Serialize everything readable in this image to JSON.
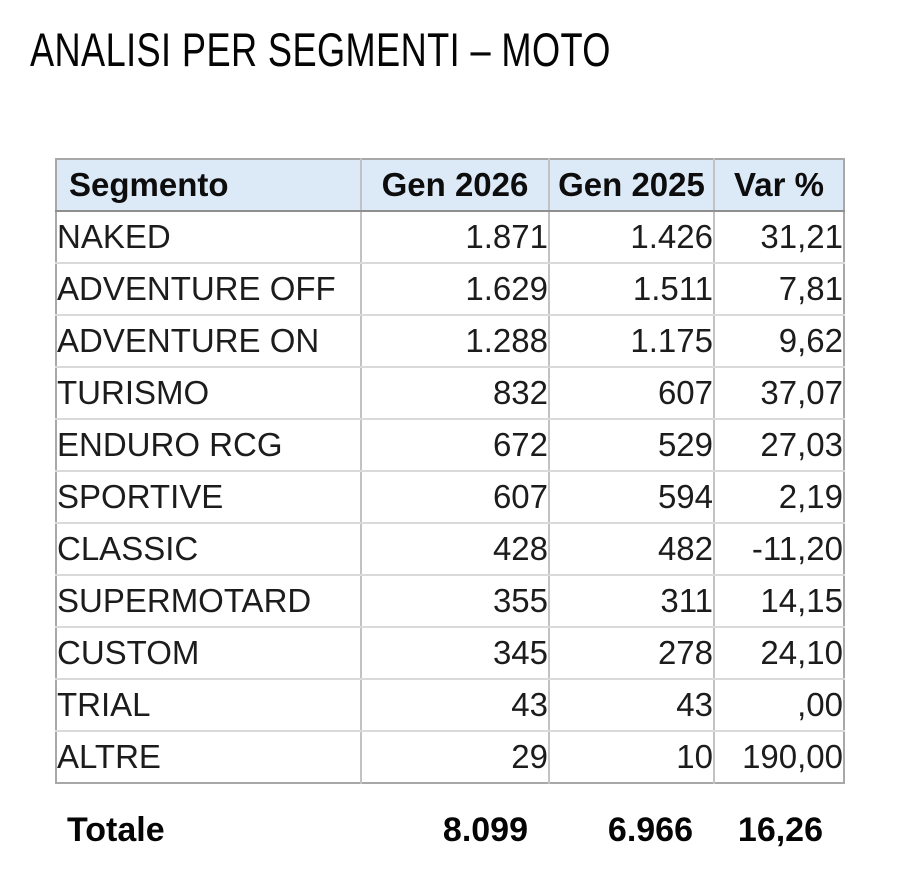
{
  "title": "ANALISI PER SEGMENTI – MOTO",
  "table": {
    "headers": {
      "segment": "Segmento",
      "gen2026": "Gen 2026",
      "gen2025": "Gen 2025",
      "var": "Var %"
    },
    "rows": [
      {
        "segment": "NAKED",
        "gen2026": "1.871",
        "gen2025": "1.426",
        "var": "31,21"
      },
      {
        "segment": "ADVENTURE OFF",
        "gen2026": "1.629",
        "gen2025": "1.511",
        "var": "7,81"
      },
      {
        "segment": "ADVENTURE ON",
        "gen2026": "1.288",
        "gen2025": "1.175",
        "var": "9,62"
      },
      {
        "segment": "TURISMO",
        "gen2026": "832",
        "gen2025": "607",
        "var": "37,07"
      },
      {
        "segment": "ENDURO RCG",
        "gen2026": "672",
        "gen2025": "529",
        "var": "27,03"
      },
      {
        "segment": "SPORTIVE",
        "gen2026": "607",
        "gen2025": "594",
        "var": "2,19"
      },
      {
        "segment": "CLASSIC",
        "gen2026": "428",
        "gen2025": "482",
        "var": "-11,20"
      },
      {
        "segment": "SUPERMOTARD",
        "gen2026": "355",
        "gen2025": "311",
        "var": "14,15"
      },
      {
        "segment": "CUSTOM",
        "gen2026": "345",
        "gen2025": "278",
        "var": "24,10"
      },
      {
        "segment": "TRIAL",
        "gen2026": "43",
        "gen2025": "43",
        "var": ",00"
      },
      {
        "segment": "ALTRE",
        "gen2026": "29",
        "gen2025": "10",
        "var": "190,00"
      }
    ],
    "total": {
      "segment": "Totale",
      "gen2026": "8.099",
      "gen2025": "6.966",
      "var": "16,26"
    }
  },
  "colors": {
    "header_bg": "#dce9f7",
    "header_border": "#8f8f8f",
    "outer_border": "#a8a8a8",
    "column_divider": "#c2c2c2",
    "row_divider": "#dadada",
    "text": "#1c1c1c"
  }
}
